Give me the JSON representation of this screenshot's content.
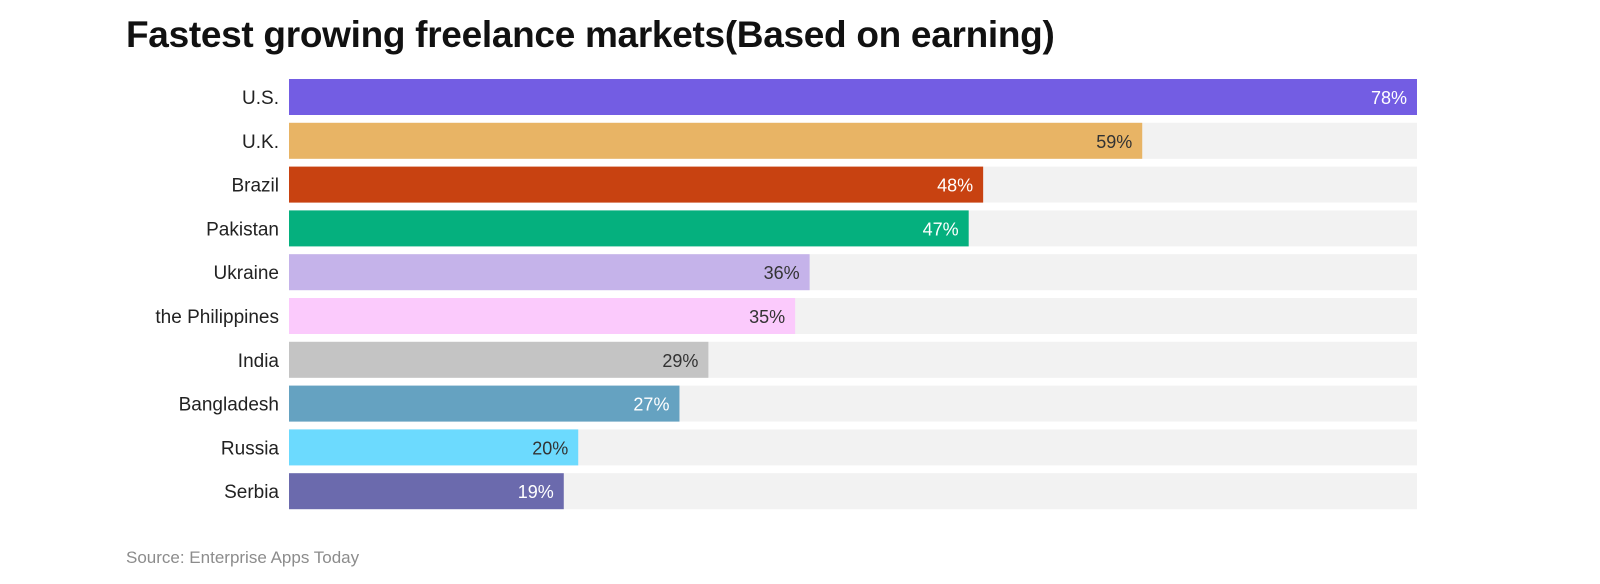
{
  "chart_data": {
    "type": "bar",
    "orientation": "horizontal",
    "title": "Fastest growing freelance markets(Based on earning)",
    "xlabel": "",
    "ylabel": "",
    "xlim": [
      0,
      78
    ],
    "grid": false,
    "legend": "none",
    "categories": [
      "U.S.",
      "U.K.",
      "Brazil",
      "Pakistan",
      "Ukraine",
      "the Philippines",
      "India",
      "Bangladesh",
      "Russia",
      "Serbia"
    ],
    "values": [
      78,
      59,
      48,
      47,
      36,
      35,
      29,
      27,
      20,
      19
    ],
    "value_labels": [
      "78%",
      "59%",
      "48%",
      "47%",
      "36%",
      "35%",
      "29%",
      "27%",
      "20%",
      "19%"
    ],
    "colors": [
      "#735de3",
      "#e8b465",
      "#c84211",
      "#05b07e",
      "#c5b3ea",
      "#fbcafc",
      "#c4c4c4",
      "#65a2c1",
      "#6cdafe",
      "#6b6aad"
    ],
    "label_colors": [
      "#ffffff",
      "#333333",
      "#ffffff",
      "#ffffff",
      "#333333",
      "#333333",
      "#333333",
      "#ffffff",
      "#333333",
      "#ffffff"
    ],
    "track_color": "#f2f2f2"
  },
  "source": "Source: Enterprise Apps Today"
}
